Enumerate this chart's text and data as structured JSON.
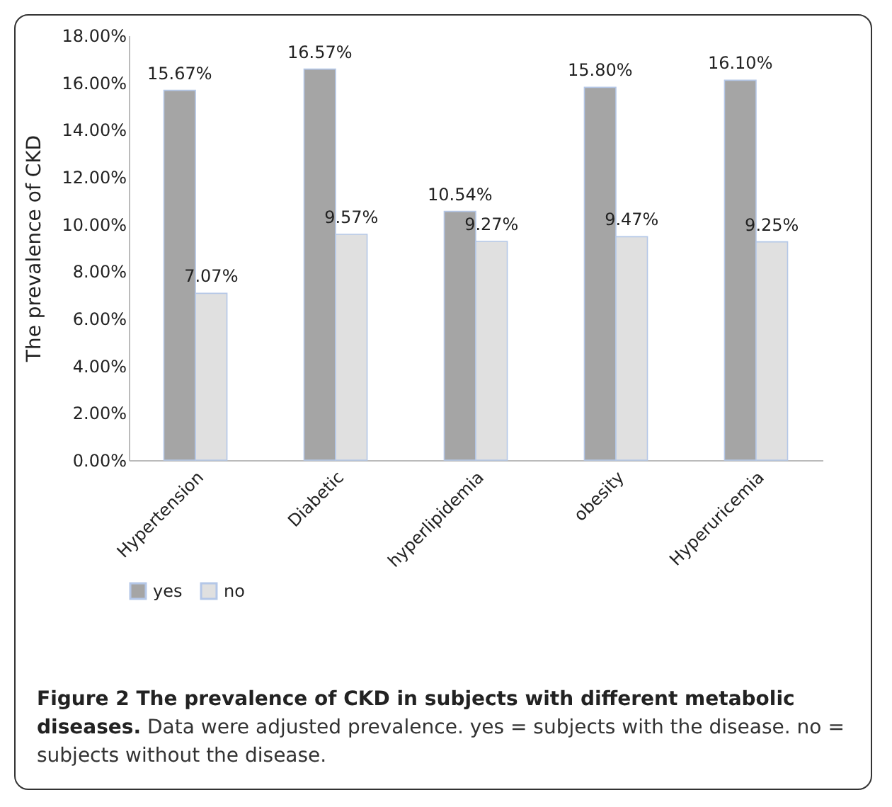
{
  "chart_data": {
    "type": "bar",
    "title": "Figure 2 The prevalence of CKD in subjects with different metabolic diseases.",
    "annotations": [
      "Data were adjusted prevalence. yes = subjects with the disease. no = subjects without the disease."
    ],
    "ylabel": "The   prevalence   of   CKD",
    "categories": [
      "Hypertension",
      "Diabetic",
      "hyperlipidemia",
      "obesity",
      "Hyperuricemia"
    ],
    "series": [
      {
        "name": "yes",
        "color": "#a5a5a5",
        "values": [
          15.67,
          16.57,
          10.54,
          15.8,
          16.1
        ],
        "value_labels": [
          "15.67%",
          "16.57%",
          "10.54%",
          "15.80%",
          "16.10%"
        ]
      },
      {
        "name": "no",
        "color": "#e0e0e0",
        "values": [
          7.07,
          9.57,
          9.27,
          9.47,
          9.25
        ],
        "value_labels": [
          "7.07%",
          "9.57%",
          "9.27%",
          "9.47%",
          "9.25%"
        ]
      }
    ],
    "ylim": [
      0,
      18
    ],
    "yticks": [
      {
        "value": 0,
        "label": "0.00%"
      },
      {
        "value": 2,
        "label": "2.00%"
      },
      {
        "value": 4,
        "label": "4.00%"
      },
      {
        "value": 6,
        "label": "6.00%"
      },
      {
        "value": 8,
        "label": "8.00%"
      },
      {
        "value": 10,
        "label": "10.00%"
      },
      {
        "value": 12,
        "label": "12.00%"
      },
      {
        "value": 14,
        "label": "14.00%"
      },
      {
        "value": 16,
        "label": "16.00%"
      },
      {
        "value": 18,
        "label": "18.00%"
      }
    ],
    "grid": false,
    "legend": "bottom"
  }
}
